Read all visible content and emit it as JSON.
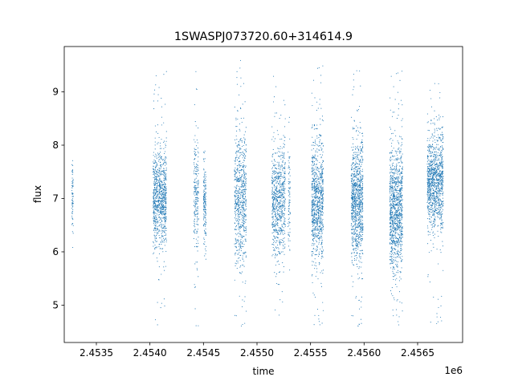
{
  "chart_data": {
    "type": "scatter",
    "title": "1SWASPJ073720.60+314614.9",
    "xlabel": "time",
    "ylabel": "flux",
    "x_offset_label": "1e6",
    "xlim": [
      2453200,
      2456920
    ],
    "ylim": [
      4.3,
      9.85
    ],
    "xticks": [
      2453500,
      2454000,
      2454500,
      2455000,
      2455500,
      2456000,
      2456500
    ],
    "xtick_labels": [
      "2.4535",
      "2.4540",
      "2.4545",
      "2.4550",
      "2.4555",
      "2.4560",
      "2.4565"
    ],
    "yticks": [
      5,
      6,
      7,
      8,
      9
    ],
    "ytick_labels": [
      "5",
      "6",
      "7",
      "8",
      "9"
    ],
    "grid": false,
    "marker_color": "#1f77b4",
    "seasons": [
      {
        "x_start": 2453270,
        "x_end": 2453285,
        "center": 7.0,
        "spread": 0.35,
        "min": 5.85,
        "max": 7.8,
        "points": 70
      },
      {
        "x_start": 2454030,
        "x_end": 2454155,
        "center": 7.0,
        "spread": 0.45,
        "min": 4.55,
        "max": 9.45,
        "points": 900
      },
      {
        "x_start": 2454410,
        "x_end": 2454455,
        "center": 7.0,
        "spread": 0.55,
        "min": 4.6,
        "max": 9.5,
        "points": 220
      },
      {
        "x_start": 2454500,
        "x_end": 2454525,
        "center": 6.95,
        "spread": 0.4,
        "min": 5.8,
        "max": 8.0,
        "points": 160
      },
      {
        "x_start": 2454790,
        "x_end": 2454900,
        "center": 7.0,
        "spread": 0.6,
        "min": 4.55,
        "max": 9.6,
        "points": 700
      },
      {
        "x_start": 2455140,
        "x_end": 2455265,
        "center": 6.95,
        "spread": 0.5,
        "min": 4.55,
        "max": 9.4,
        "points": 750
      },
      {
        "x_start": 2455290,
        "x_end": 2455310,
        "center": 7.0,
        "spread": 0.45,
        "min": 5.5,
        "max": 8.8,
        "points": 80
      },
      {
        "x_start": 2455510,
        "x_end": 2455620,
        "center": 6.95,
        "spread": 0.55,
        "min": 4.55,
        "max": 9.5,
        "points": 900
      },
      {
        "x_start": 2455880,
        "x_end": 2455990,
        "center": 6.95,
        "spread": 0.55,
        "min": 4.55,
        "max": 9.55,
        "points": 1000
      },
      {
        "x_start": 2456240,
        "x_end": 2456360,
        "center": 6.8,
        "spread": 0.55,
        "min": 4.55,
        "max": 9.4,
        "points": 1100
      },
      {
        "x_start": 2456590,
        "x_end": 2456740,
        "center": 7.3,
        "spread": 0.45,
        "min": 4.6,
        "max": 9.3,
        "points": 1100
      }
    ]
  }
}
